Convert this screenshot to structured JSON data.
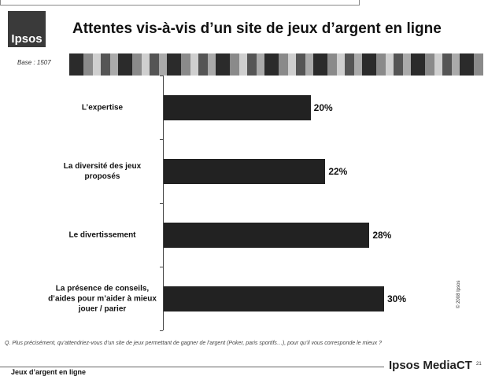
{
  "header": {
    "logo": "Ipsos",
    "title": "Attentes vis-à-vis d’un site de jeux d’argent en ligne",
    "base": "Base : 1507"
  },
  "chart_data": {
    "type": "bar",
    "orientation": "horizontal",
    "categories": [
      "L’expertise",
      "La diversité des jeux proposés",
      "Le divertissement",
      "La présence de conseils, d’aides pour m’aider à mieux jouer / parier"
    ],
    "values": [
      20,
      22,
      28,
      30
    ],
    "value_labels": [
      "20%",
      "22%",
      "28%",
      "30%"
    ],
    "color": "#222222"
  },
  "footer": {
    "question": "Q. Plus précisément, qu’attendriez-vous d’un site de jeux permettant de gagner de l’argent (Poker, paris sportifs…), pour qu’il vous corresponde le mieux ?",
    "section": "Jeux d’argent en ligne",
    "brand": "Ipsos MediaCT",
    "page": "21",
    "copyright": "© 2008 Ipsos"
  }
}
